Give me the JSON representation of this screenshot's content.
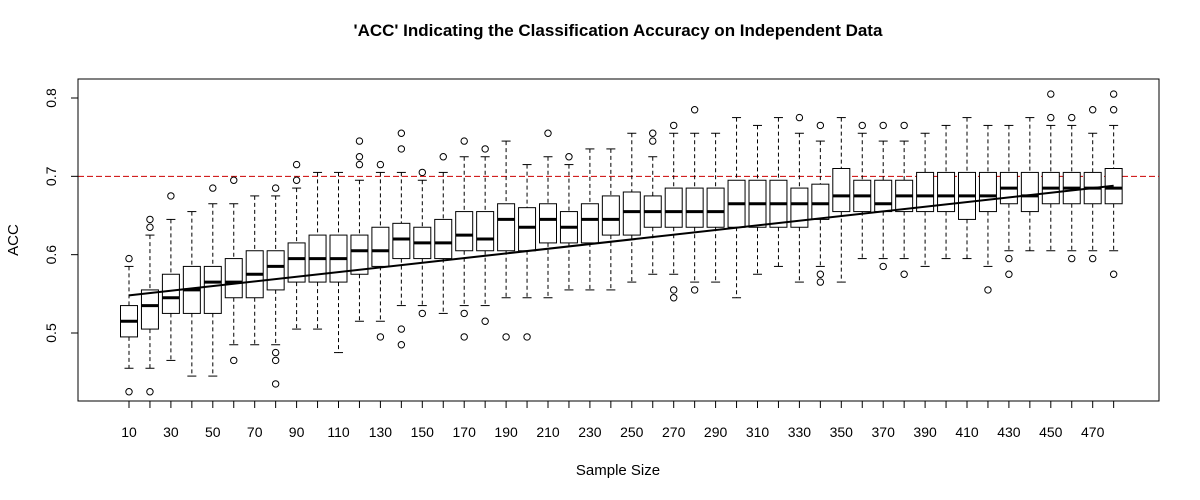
{
  "chart_data": {
    "type": "box",
    "title": "'ACC' Indicating the Classification Accuracy on Independent Data",
    "xlabel": "Sample Size",
    "ylabel": "ACC",
    "xtick_labels": [
      "10",
      "30",
      "50",
      "70",
      "90",
      "110",
      "130",
      "150",
      "170",
      "190",
      "210",
      "230",
      "250",
      "270",
      "290",
      "310",
      "330",
      "350",
      "370",
      "390",
      "410",
      "430",
      "450",
      "470"
    ],
    "yticks": [
      0.5,
      0.6,
      0.7,
      0.8
    ],
    "ylim": [
      0.41,
      0.83
    ],
    "reference_line": {
      "y": 0.7,
      "color": "#cc0000",
      "style": "dashed"
    },
    "trend_line": {
      "from": [
        10,
        0.548
      ],
      "to": [
        480,
        0.688
      ]
    },
    "boxes": [
      {
        "x": 10,
        "min": 0.455,
        "q1": 0.495,
        "median": 0.515,
        "q3": 0.535,
        "max": 0.585,
        "outliers": [
          0.425,
          0.595
        ]
      },
      {
        "x": 20,
        "min": 0.455,
        "q1": 0.505,
        "median": 0.535,
        "q3": 0.555,
        "max": 0.625,
        "outliers": [
          0.425,
          0.635,
          0.645
        ]
      },
      {
        "x": 30,
        "min": 0.465,
        "q1": 0.525,
        "median": 0.545,
        "q3": 0.575,
        "max": 0.645,
        "outliers": [
          0.675
        ]
      },
      {
        "x": 40,
        "min": 0.445,
        "q1": 0.525,
        "median": 0.555,
        "q3": 0.585,
        "max": 0.655,
        "outliers": []
      },
      {
        "x": 50,
        "min": 0.445,
        "q1": 0.525,
        "median": 0.565,
        "q3": 0.585,
        "max": 0.665,
        "outliers": [
          0.685
        ]
      },
      {
        "x": 60,
        "min": 0.485,
        "q1": 0.545,
        "median": 0.565,
        "q3": 0.595,
        "max": 0.665,
        "outliers": [
          0.465,
          0.695
        ]
      },
      {
        "x": 70,
        "min": 0.485,
        "q1": 0.545,
        "median": 0.575,
        "q3": 0.605,
        "max": 0.675,
        "outliers": []
      },
      {
        "x": 80,
        "min": 0.485,
        "q1": 0.555,
        "median": 0.585,
        "q3": 0.605,
        "max": 0.675,
        "outliers": [
          0.435,
          0.465,
          0.475,
          0.685
        ]
      },
      {
        "x": 90,
        "min": 0.505,
        "q1": 0.565,
        "median": 0.595,
        "q3": 0.615,
        "max": 0.685,
        "outliers": [
          0.695,
          0.715
        ]
      },
      {
        "x": 100,
        "min": 0.505,
        "q1": 0.565,
        "median": 0.595,
        "q3": 0.625,
        "max": 0.705,
        "outliers": []
      },
      {
        "x": 110,
        "min": 0.475,
        "q1": 0.565,
        "median": 0.595,
        "q3": 0.625,
        "max": 0.705,
        "outliers": []
      },
      {
        "x": 120,
        "min": 0.515,
        "q1": 0.575,
        "median": 0.605,
        "q3": 0.625,
        "max": 0.695,
        "outliers": [
          0.715,
          0.725,
          0.745
        ]
      },
      {
        "x": 130,
        "min": 0.515,
        "q1": 0.585,
        "median": 0.605,
        "q3": 0.635,
        "max": 0.705,
        "outliers": [
          0.495,
          0.715
        ]
      },
      {
        "x": 140,
        "min": 0.535,
        "q1": 0.595,
        "median": 0.62,
        "q3": 0.64,
        "max": 0.705,
        "outliers": [
          0.485,
          0.505,
          0.735,
          0.755
        ]
      },
      {
        "x": 150,
        "min": 0.535,
        "q1": 0.595,
        "median": 0.615,
        "q3": 0.635,
        "max": 0.695,
        "outliers": [
          0.525,
          0.705
        ]
      },
      {
        "x": 160,
        "min": 0.525,
        "q1": 0.595,
        "median": 0.615,
        "q3": 0.645,
        "max": 0.705,
        "outliers": [
          0.725
        ]
      },
      {
        "x": 170,
        "min": 0.535,
        "q1": 0.605,
        "median": 0.625,
        "q3": 0.655,
        "max": 0.725,
        "outliers": [
          0.495,
          0.525,
          0.745
        ]
      },
      {
        "x": 180,
        "min": 0.535,
        "q1": 0.605,
        "median": 0.62,
        "q3": 0.655,
        "max": 0.725,
        "outliers": [
          0.515,
          0.735
        ]
      },
      {
        "x": 190,
        "min": 0.545,
        "q1": 0.605,
        "median": 0.645,
        "q3": 0.665,
        "max": 0.745,
        "outliers": [
          0.495
        ]
      },
      {
        "x": 200,
        "min": 0.545,
        "q1": 0.605,
        "median": 0.635,
        "q3": 0.66,
        "max": 0.715,
        "outliers": [
          0.495
        ]
      },
      {
        "x": 210,
        "min": 0.545,
        "q1": 0.615,
        "median": 0.645,
        "q3": 0.665,
        "max": 0.725,
        "outliers": [
          0.755
        ]
      },
      {
        "x": 220,
        "min": 0.555,
        "q1": 0.615,
        "median": 0.635,
        "q3": 0.655,
        "max": 0.715,
        "outliers": [
          0.725
        ]
      },
      {
        "x": 230,
        "min": 0.555,
        "q1": 0.615,
        "median": 0.645,
        "q3": 0.665,
        "max": 0.735,
        "outliers": []
      },
      {
        "x": 240,
        "min": 0.555,
        "q1": 0.625,
        "median": 0.645,
        "q3": 0.675,
        "max": 0.735,
        "outliers": []
      },
      {
        "x": 250,
        "min": 0.565,
        "q1": 0.625,
        "median": 0.655,
        "q3": 0.68,
        "max": 0.755,
        "outliers": []
      },
      {
        "x": 260,
        "min": 0.575,
        "q1": 0.635,
        "median": 0.655,
        "q3": 0.675,
        "max": 0.725,
        "outliers": [
          0.745,
          0.755
        ]
      },
      {
        "x": 270,
        "min": 0.575,
        "q1": 0.635,
        "median": 0.655,
        "q3": 0.685,
        "max": 0.755,
        "outliers": [
          0.545,
          0.555,
          0.765
        ]
      },
      {
        "x": 280,
        "min": 0.565,
        "q1": 0.635,
        "median": 0.655,
        "q3": 0.685,
        "max": 0.755,
        "outliers": [
          0.555,
          0.785
        ]
      },
      {
        "x": 290,
        "min": 0.565,
        "q1": 0.635,
        "median": 0.655,
        "q3": 0.685,
        "max": 0.755,
        "outliers": []
      },
      {
        "x": 300,
        "min": 0.545,
        "q1": 0.635,
        "median": 0.665,
        "q3": 0.695,
        "max": 0.775,
        "outliers": []
      },
      {
        "x": 310,
        "min": 0.575,
        "q1": 0.635,
        "median": 0.665,
        "q3": 0.695,
        "max": 0.765,
        "outliers": []
      },
      {
        "x": 320,
        "min": 0.585,
        "q1": 0.635,
        "median": 0.665,
        "q3": 0.695,
        "max": 0.775,
        "outliers": []
      },
      {
        "x": 330,
        "min": 0.565,
        "q1": 0.635,
        "median": 0.665,
        "q3": 0.685,
        "max": 0.755,
        "outliers": [
          0.775
        ]
      },
      {
        "x": 340,
        "min": 0.585,
        "q1": 0.645,
        "median": 0.665,
        "q3": 0.69,
        "max": 0.745,
        "outliers": [
          0.565,
          0.575,
          0.765
        ]
      },
      {
        "x": 350,
        "min": 0.565,
        "q1": 0.655,
        "median": 0.675,
        "q3": 0.71,
        "max": 0.775,
        "outliers": []
      },
      {
        "x": 360,
        "min": 0.595,
        "q1": 0.655,
        "median": 0.675,
        "q3": 0.695,
        "max": 0.755,
        "outliers": [
          0.765
        ]
      },
      {
        "x": 370,
        "min": 0.595,
        "q1": 0.655,
        "median": 0.665,
        "q3": 0.695,
        "max": 0.745,
        "outliers": [
          0.585,
          0.765
        ]
      },
      {
        "x": 380,
        "min": 0.595,
        "q1": 0.655,
        "median": 0.675,
        "q3": 0.695,
        "max": 0.745,
        "outliers": [
          0.575,
          0.765
        ]
      },
      {
        "x": 390,
        "min": 0.585,
        "q1": 0.655,
        "median": 0.675,
        "q3": 0.705,
        "max": 0.755,
        "outliers": []
      },
      {
        "x": 400,
        "min": 0.595,
        "q1": 0.655,
        "median": 0.675,
        "q3": 0.705,
        "max": 0.765,
        "outliers": []
      },
      {
        "x": 410,
        "min": 0.595,
        "q1": 0.645,
        "median": 0.675,
        "q3": 0.705,
        "max": 0.775,
        "outliers": []
      },
      {
        "x": 420,
        "min": 0.585,
        "q1": 0.655,
        "median": 0.675,
        "q3": 0.705,
        "max": 0.765,
        "outliers": [
          0.555
        ]
      },
      {
        "x": 430,
        "min": 0.605,
        "q1": 0.665,
        "median": 0.685,
        "q3": 0.705,
        "max": 0.765,
        "outliers": [
          0.575,
          0.595
        ]
      },
      {
        "x": 440,
        "min": 0.605,
        "q1": 0.655,
        "median": 0.675,
        "q3": 0.705,
        "max": 0.775,
        "outliers": []
      },
      {
        "x": 450,
        "min": 0.605,
        "q1": 0.665,
        "median": 0.685,
        "q3": 0.705,
        "max": 0.765,
        "outliers": [
          0.775,
          0.805
        ]
      },
      {
        "x": 460,
        "min": 0.605,
        "q1": 0.665,
        "median": 0.685,
        "q3": 0.705,
        "max": 0.765,
        "outliers": [
          0.595,
          0.775
        ]
      },
      {
        "x": 470,
        "min": 0.605,
        "q1": 0.665,
        "median": 0.685,
        "q3": 0.705,
        "max": 0.755,
        "outliers": [
          0.595,
          0.785
        ]
      },
      {
        "x": 480,
        "min": 0.605,
        "q1": 0.665,
        "median": 0.685,
        "q3": 0.71,
        "max": 0.765,
        "outliers": [
          0.575,
          0.785,
          0.805
        ]
      }
    ]
  }
}
